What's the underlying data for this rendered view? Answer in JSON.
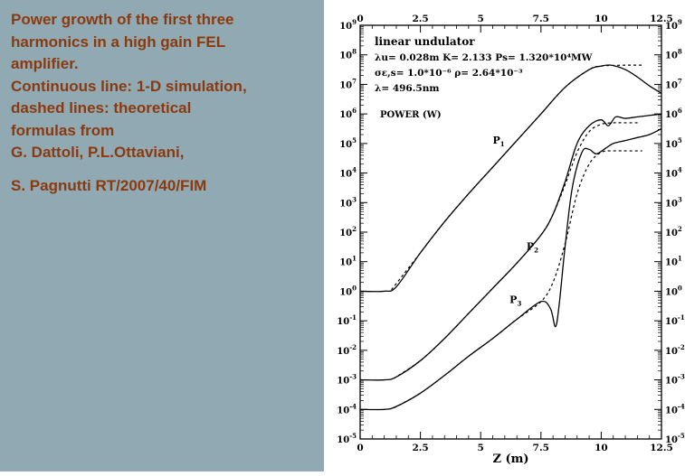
{
  "caption": {
    "lines": [
      "Power growth of the first three",
      "harmonics in a high gain FEL",
      "amplifier.",
      "Continuous line: 1-D simulation,",
      "dashed lines: theoretical",
      "formulas from",
      "G. Dattoli, P.L.Ottaviani,",
      "S. Pagnutti RT/2007/40/FIM"
    ]
  },
  "colors": {
    "panel_bg": "#90a9b2",
    "caption_text": "#8b3a0f",
    "plot_line": "#000000"
  },
  "chart_data": {
    "type": "line",
    "title": "",
    "xlabel": "Z (m)",
    "ylabel": "",
    "xlim": [
      0,
      12.5
    ],
    "ylim_log10": [
      -5,
      9
    ],
    "yscale": "log",
    "x_ticks": [
      "0",
      "2.5",
      "5",
      "7.5",
      "10",
      "12.5"
    ],
    "y_tick_exponents": [
      9,
      8,
      7,
      6,
      5,
      4,
      3,
      2,
      1,
      0,
      -1,
      -2,
      -3,
      -4,
      -5
    ],
    "annotations": {
      "line1": "linear undulator",
      "line2": "λu= 0.028m  K= 2.133  Ps= 1.320*10⁴MW",
      "line3": "σε,s= 1.0*10⁻⁶   ρ= 2.64*10⁻³",
      "line4": "λ= 496.5nm",
      "power_label": "POWER (W)"
    },
    "series": [
      {
        "name": "P1",
        "style": "solid",
        "x": [
          0,
          1.0,
          1.5,
          2.5,
          3.5,
          4.5,
          5.5,
          6.5,
          7.5,
          8.5,
          9.5,
          10.0,
          10.4,
          11.0,
          11.5,
          12.0,
          12.5
        ],
        "log10_y": [
          0,
          0,
          0.15,
          1.3,
          2.35,
          3.3,
          4.2,
          5.1,
          6.0,
          6.9,
          7.5,
          7.62,
          7.65,
          7.5,
          7.25,
          6.95,
          6.7
        ]
      },
      {
        "name": "P1 theory",
        "style": "dashed",
        "x": [
          1.3,
          2.5,
          3.5,
          4.5,
          5.5,
          6.5,
          7.5,
          8.5,
          9.5,
          10.0,
          11.0,
          11.7
        ],
        "log10_y": [
          0.05,
          1.3,
          2.35,
          3.3,
          4.2,
          5.1,
          6.0,
          6.9,
          7.5,
          7.62,
          7.65,
          7.65
        ]
      },
      {
        "name": "P2",
        "style": "solid",
        "x": [
          0,
          1.0,
          1.5,
          2.5,
          3.5,
          4.5,
          5.5,
          6.5,
          7.5,
          8.0,
          8.5,
          9.0,
          9.5,
          10.0,
          10.3,
          10.6,
          11.0,
          11.5,
          12.0,
          12.5
        ],
        "log10_y": [
          -3,
          -3,
          -2.9,
          -2.35,
          -1.6,
          -0.75,
          0.1,
          0.95,
          1.9,
          2.6,
          3.7,
          5.0,
          5.6,
          5.8,
          5.6,
          5.9,
          5.85,
          5.9,
          5.95,
          6.0
        ]
      },
      {
        "name": "P2 theory",
        "style": "dashed",
        "x": [
          1.4,
          2.5,
          3.5,
          4.5,
          5.5,
          6.5,
          7.5,
          8.0,
          8.5,
          9.0,
          9.5,
          10.0,
          10.5,
          11.0,
          11.6
        ],
        "log10_y": [
          -2.95,
          -2.35,
          -1.6,
          -0.75,
          0.1,
          0.95,
          1.9,
          2.6,
          3.6,
          4.7,
          5.4,
          5.65,
          5.7,
          5.7,
          5.7
        ]
      },
      {
        "name": "P3",
        "style": "solid",
        "x": [
          0,
          1.0,
          1.5,
          2.5,
          3.5,
          4.5,
          5.5,
          6.5,
          7.5,
          7.9,
          8.1,
          8.25,
          8.5,
          8.8,
          9.2,
          9.5,
          9.8,
          10.2,
          10.5,
          11.0,
          11.5,
          12.0,
          12.5
        ],
        "log10_y": [
          -4,
          -4,
          -3.9,
          -3.45,
          -2.85,
          -2.2,
          -1.6,
          -0.95,
          -0.35,
          -0.6,
          -1.2,
          -0.5,
          1.5,
          3.5,
          4.7,
          4.8,
          4.65,
          4.85,
          5.0,
          5.1,
          5.2,
          5.3,
          5.5
        ]
      },
      {
        "name": "P3 theory",
        "style": "dashed",
        "x": [
          1.4,
          2.5,
          3.5,
          4.5,
          5.5,
          6.5,
          7.5,
          8.0,
          8.5,
          9.0,
          9.5,
          10.0,
          10.5,
          11.0,
          11.7
        ],
        "log10_y": [
          -3.95,
          -3.45,
          -2.85,
          -2.2,
          -1.6,
          -0.95,
          -0.35,
          0.3,
          1.6,
          3.3,
          4.3,
          4.7,
          4.75,
          4.75,
          4.75
        ]
      }
    ],
    "series_labels": [
      {
        "text": "P",
        "sub": "1",
        "x": 5.5,
        "log10_y": 5.0
      },
      {
        "text": "P",
        "sub": "2",
        "x": 6.9,
        "log10_y": 1.4
      },
      {
        "text": "P",
        "sub": "3",
        "x": 6.2,
        "log10_y": -0.4
      }
    ],
    "grid": false,
    "legend": "none"
  }
}
